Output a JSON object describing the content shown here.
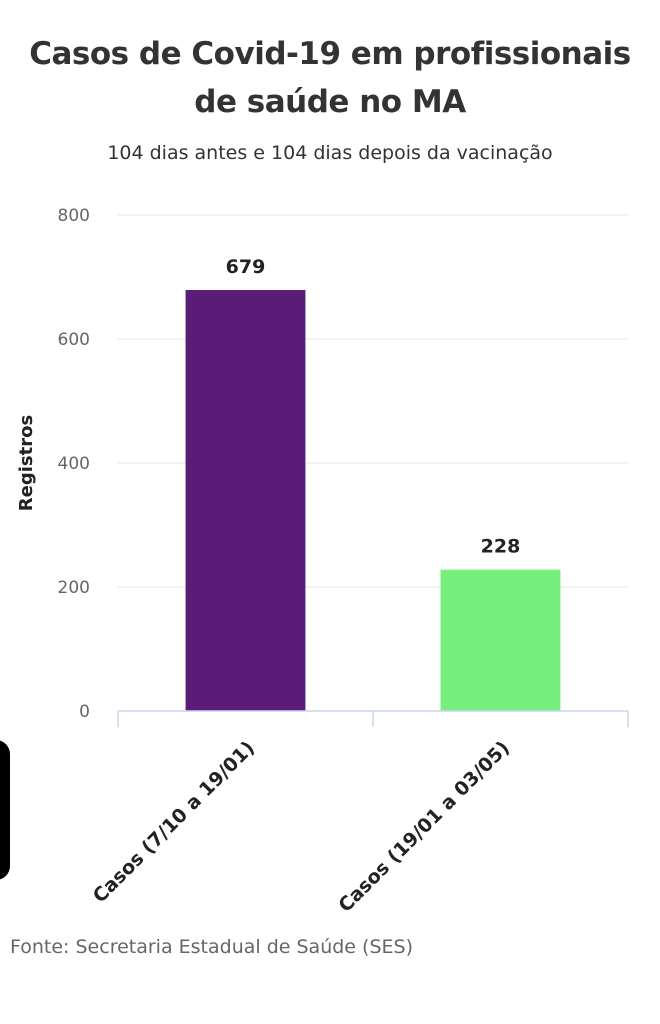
{
  "chart_data": {
    "type": "bar",
    "title_lines": [
      "Casos de Covid-19 em profissionais",
      "de saúde no MA"
    ],
    "subtitle": "104 dias antes e 104 dias depois da vacinação",
    "xlabel": "",
    "ylabel": "Registros",
    "categories": [
      "Casos (7/10 a 19/01)",
      "Casos (19/01 a 03/05)"
    ],
    "values": [
      679,
      228
    ],
    "data_labels": [
      "679",
      "228"
    ],
    "bar_colors": [
      "#5b1c77",
      "#77ef7e"
    ],
    "ylim": [
      0,
      800
    ],
    "yticks": [
      0,
      200,
      400,
      600,
      800
    ],
    "ytick_labels": [
      "0",
      "200",
      "400",
      "600",
      "800"
    ],
    "grid": true,
    "legend": "none"
  },
  "source": "Fonte: Secretaria Estadual de Saúde (SES)"
}
